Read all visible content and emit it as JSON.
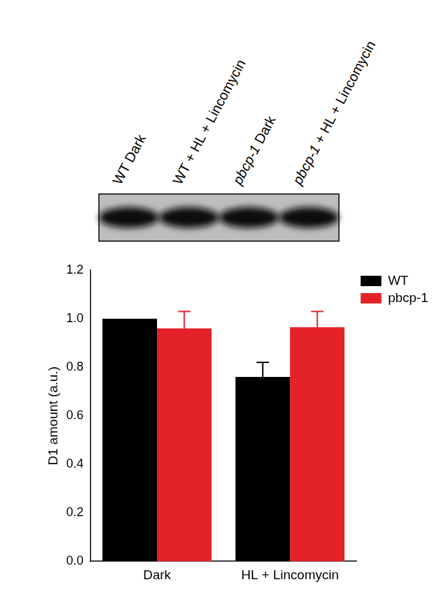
{
  "blot": {
    "lanes": [
      "WT Dark",
      "WT + HL + Lincomycin",
      "pbcp-1 Dark",
      "pbcp-1 + HL + Lincomycin"
    ]
  },
  "chart_data": {
    "type": "bar",
    "y_label": "D1 amount (a.u.)",
    "categories": [
      "Dark",
      "HL + Lincomycin"
    ],
    "series": [
      {
        "name": "WT",
        "color": "#000000",
        "values": [
          1.0,
          0.76
        ],
        "errors": [
          null,
          0.06
        ]
      },
      {
        "name": "pbcp-1",
        "color": "#e3222a",
        "values": [
          0.96,
          0.965
        ],
        "errors": [
          0.07,
          0.065
        ]
      }
    ],
    "ylim": [
      0,
      1.2
    ],
    "yticks": [
      {
        "value": 0,
        "label": "0.0"
      },
      0.2,
      0.4,
      0.6,
      0.8,
      {
        "value": 1,
        "label": "1.0"
      },
      1.2
    ],
    "grid": false,
    "legend": "right"
  }
}
